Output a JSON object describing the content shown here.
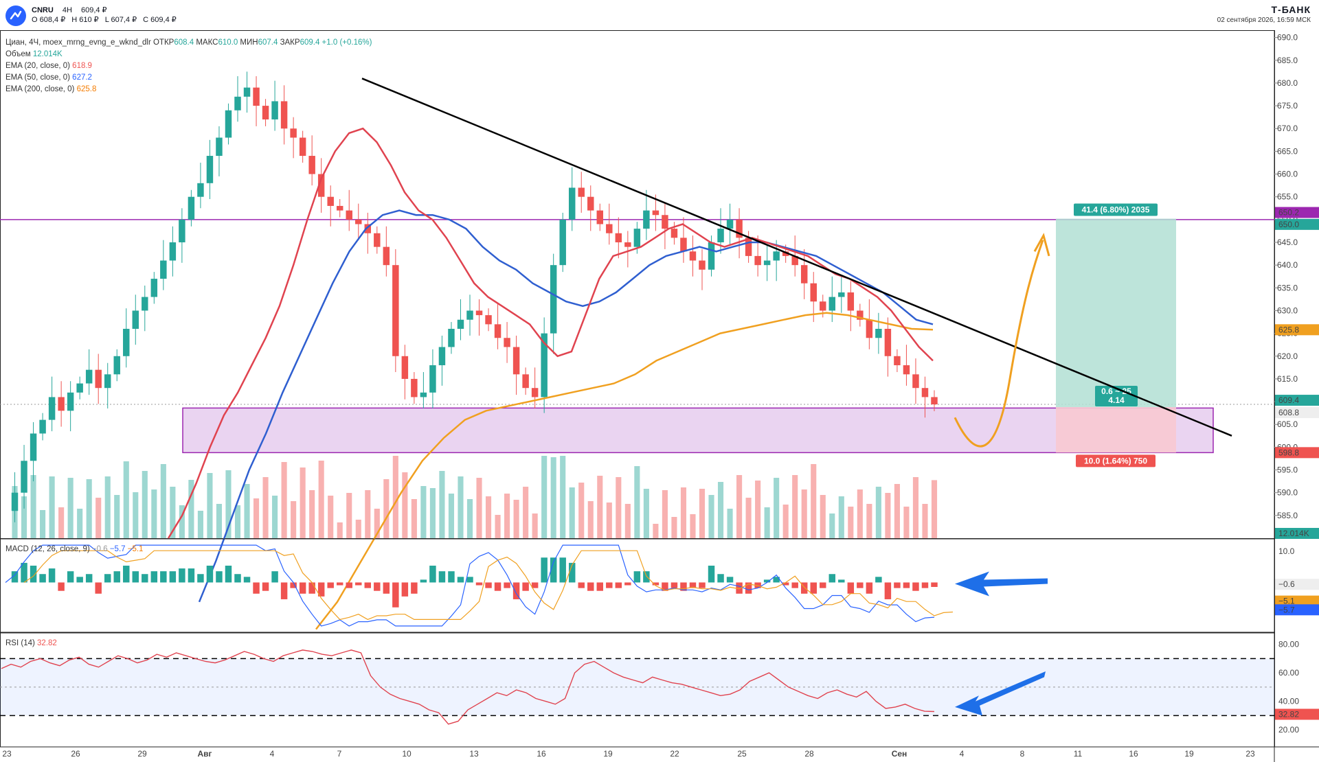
{
  "header": {
    "ticker": "CNRU",
    "timeframe": "4H",
    "price": "609,4 ₽",
    "o": "О 608,4 ₽",
    "h": "Н 610 ₽",
    "l": "L 607,4 ₽",
    "c": "С 609,4 ₽",
    "brand": "Т-БАНК",
    "datetime": "02 сентября 2026, 16:59 МСК"
  },
  "legend": {
    "main_title": "Циан, 4Ч, moex_mrng_evng_e_wknd_dlr",
    "open_label": "ОТКР",
    "open_val": "608.4",
    "high_label": "МАКС",
    "high_val": "610.0",
    "low_label": "МИН",
    "low_val": "607.4",
    "close_label": "ЗАКР",
    "close_val": "609.4",
    "change": "+1.0 (+0.16%)",
    "volume_label": "Объем",
    "volume_val": "12.014K",
    "ema20_label": "EMA (20, close, 0)",
    "ema20_val": "618.9",
    "ema50_label": "EMA (50, close, 0)",
    "ema50_val": "627.2",
    "ema200_label": "EMA (200, close, 0)",
    "ema200_val": "625.8",
    "macd_label": "MACD (12, 26, close, 9)",
    "macd_v1": "−0.6",
    "macd_v2": "−5.7",
    "macd_v3": "−5.1",
    "rsi_label": "RSI (14)",
    "rsi_val": "32.82"
  },
  "colors": {
    "up": "#26a69a",
    "down": "#ef5350",
    "ema20": "#e0434f",
    "ema50": "#2f5fd0",
    "ema200": "#f0a020",
    "zone": "#d9b0e6",
    "level": "#9c27b0",
    "target": "#b2dfd4",
    "stop": "#f8c9d1"
  },
  "chart_data": {
    "type": "candlestick",
    "y_range": [
      580,
      691
    ],
    "y_ticks": [
      585,
      590,
      595,
      600,
      605,
      610,
      615,
      620,
      625,
      630,
      635,
      640,
      645,
      650,
      655,
      660,
      665,
      670,
      675,
      680,
      685,
      690
    ],
    "x_ticks": [
      "23",
      "26",
      "29",
      "Авг",
      "4",
      "7",
      "10",
      "13",
      "16",
      "19",
      "22",
      "25",
      "28",
      "Сен",
      "4",
      "8",
      "11",
      "16",
      "19",
      "23"
    ],
    "candles_close_path": [
      586,
      590,
      597,
      603,
      606,
      611,
      608,
      612,
      614,
      617,
      613,
      616,
      620,
      626,
      630,
      633,
      637,
      641,
      645,
      650,
      655,
      658,
      664,
      668,
      674,
      677,
      679,
      675,
      672,
      676,
      670,
      668,
      664,
      660,
      655,
      653,
      652,
      650,
      649,
      647,
      644,
      640,
      620,
      615,
      611,
      612,
      618,
      622,
      626,
      628,
      630,
      629,
      627,
      624,
      622,
      616,
      613,
      611,
      625,
      640,
      650,
      657,
      655,
      652,
      649,
      647,
      645,
      644,
      648,
      652,
      651,
      648,
      646,
      643,
      641,
      639,
      645,
      648,
      650,
      646,
      642,
      640,
      641,
      643,
      642,
      640,
      636,
      632,
      630,
      633,
      634,
      630,
      628,
      624,
      626,
      620,
      618,
      616,
      613,
      611,
      609.4
    ],
    "ema20_path": [
      580,
      585,
      592,
      600,
      607,
      612,
      618,
      624,
      631,
      640,
      650,
      659,
      665,
      669,
      670,
      667,
      662,
      656,
      652,
      650,
      646,
      641,
      636,
      633,
      631,
      629,
      627,
      623,
      620,
      621,
      629,
      637,
      642,
      643,
      644,
      646,
      648,
      649,
      647,
      645,
      644,
      645,
      646,
      645,
      644,
      643,
      642,
      640,
      638,
      637,
      635,
      633,
      630,
      626,
      622,
      619
    ],
    "ema50_path": [
      566,
      575,
      585,
      595,
      603,
      612,
      620,
      628,
      636,
      643,
      648,
      651,
      652,
      651,
      651,
      650,
      648,
      644,
      641,
      639,
      636,
      634,
      632,
      631,
      632,
      634,
      637,
      640,
      642,
      643,
      644,
      643,
      644,
      645,
      645,
      644,
      643,
      642,
      640,
      638,
      636,
      634,
      631,
      628,
      627
    ],
    "ema200_path": [
      560,
      566,
      574,
      582,
      590,
      597,
      602,
      606,
      608,
      609,
      610,
      611,
      612,
      613,
      614,
      616,
      619,
      621,
      623,
      625,
      626,
      627,
      628,
      629,
      629.5,
      629,
      628,
      627,
      626,
      625.8
    ],
    "volume": "12.014K",
    "levels": [
      {
        "label": "650.0",
        "value": 650.0
      },
      {
        "label": "650.2",
        "value": 650.2
      },
      {
        "label": "625.8",
        "value": 625.8
      },
      {
        "label": "609.4",
        "value": 609.4
      },
      {
        "label": "608.8",
        "value": 608.8
      },
      {
        "label": "598.8",
        "value": 598.8
      }
    ],
    "support_zone": [
      598.8,
      608.6
    ],
    "position": {
      "target_text": "41.4 (6.80%) 2035",
      "stop_text": "10.0 (1.64%) 750",
      "ratio_text1": "0.6 ~ 25",
      "ratio_text2": "4.14",
      "entry": 608.8,
      "target": 650.2,
      "stop": 598.8
    },
    "macd": {
      "y_ticks": [
        "10.0",
        "−0.6",
        "−5.1",
        "−5.7"
      ],
      "values": {
        "macd": -5.7,
        "signal": -5.1,
        "hist": -0.6
      }
    },
    "rsi": {
      "y_ticks": [
        "80.00",
        "60.00",
        "40.00",
        "32.82",
        "20.00"
      ],
      "upper": 70,
      "lower": 30,
      "mid": 50,
      "value": 32.82,
      "series": [
        63,
        66,
        64,
        68,
        70,
        67,
        65,
        69,
        71,
        66,
        64,
        68,
        72,
        70,
        67,
        69,
        73,
        71,
        74,
        72,
        70,
        68,
        67,
        69,
        72,
        75,
        73,
        70,
        68,
        72,
        74,
        76,
        75,
        73,
        72,
        74,
        76,
        74,
        58,
        50,
        45,
        42,
        40,
        38,
        34,
        32,
        24,
        26,
        34,
        38,
        42,
        46,
        44,
        48,
        46,
        42,
        40,
        38,
        42,
        60,
        66,
        68,
        64,
        60,
        57,
        55,
        53,
        57,
        55,
        53,
        52,
        50,
        48,
        46,
        44,
        45,
        48,
        54,
        57,
        60,
        55,
        50,
        47,
        44,
        42,
        46,
        48,
        45,
        43,
        47,
        40,
        35,
        36,
        38,
        35,
        33,
        32.82
      ]
    }
  }
}
